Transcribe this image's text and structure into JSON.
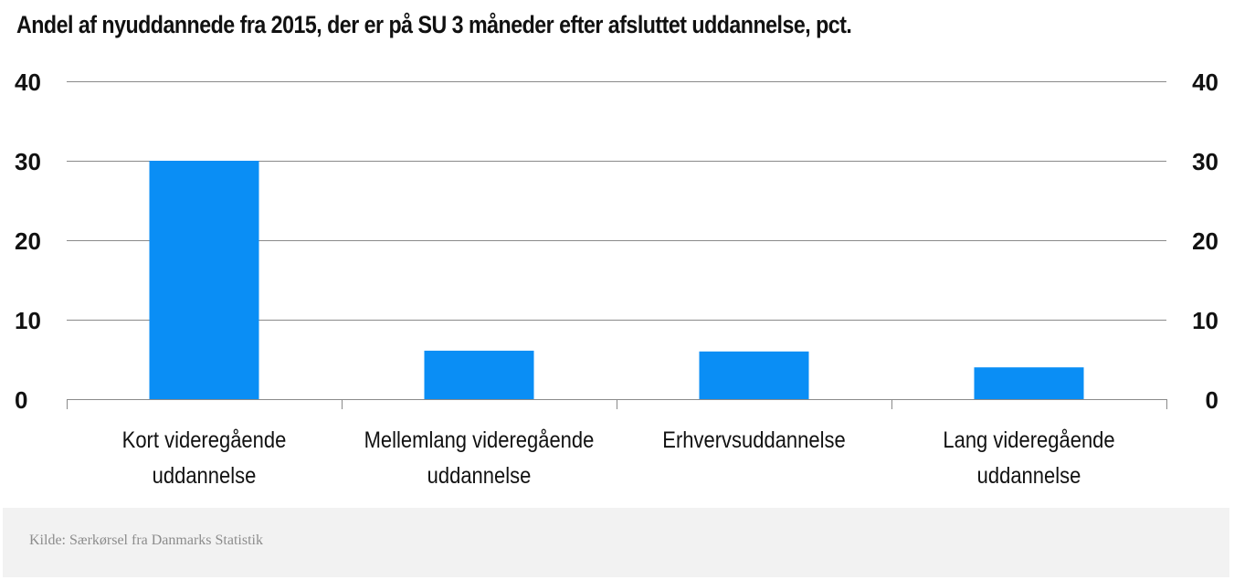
{
  "chart_data": {
    "type": "bar",
    "title": "Andel af nyuddannede fra 2015, der er på SU 3 måneder efter afsluttet uddannelse, pct.",
    "categories": [
      [
        "Kort videregående",
        "uddannelse"
      ],
      [
        "Mellemlang videregående",
        "uddannelse"
      ],
      [
        "Erhvervsuddannelse"
      ],
      [
        "Lang videregående",
        "uddannelse"
      ]
    ],
    "values": [
      30,
      6.1,
      6.0,
      4.0
    ],
    "ylim": [
      0,
      40
    ],
    "yticks": [
      "0",
      "10",
      "20",
      "30",
      "40"
    ],
    "xlabel": "",
    "ylabel": "",
    "grid": true,
    "dual_y_axis": true,
    "bar_color": "#0a8ef5"
  },
  "source": "Kilde: Særkørsel fra Danmarks Statistik"
}
